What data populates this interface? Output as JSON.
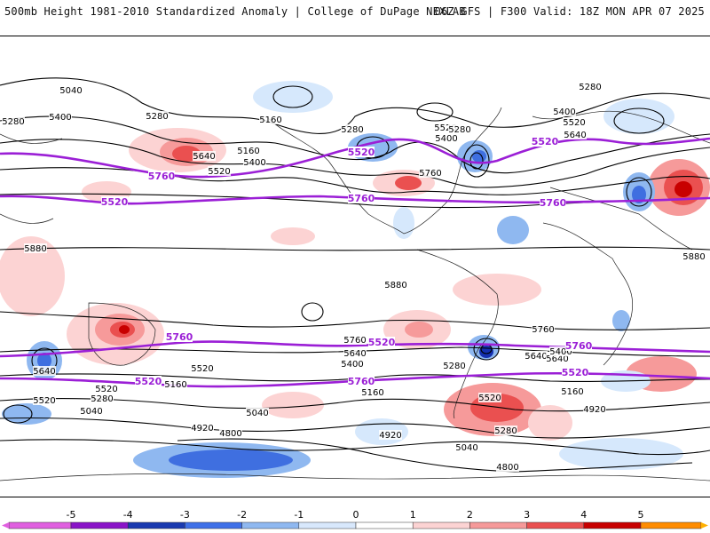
{
  "header": {
    "left_title": "500mb Height 1981-2010 Standardized Anomaly | College of DuPage NEXLAB",
    "right_title": "06Z GFS | F300 Valid: 18Z MON APR 07 2025"
  },
  "map": {
    "contour_color": "#000000",
    "highlight_color": "#9b1fd6",
    "contour_labels": [
      "5040",
      "5280",
      "5400",
      "5280",
      "5160",
      "5280",
      "5400",
      "5520",
      "5640",
      "5520",
      "5400",
      "5760",
      "5280",
      "5160",
      "5400",
      "5520",
      "5640",
      "5280",
      "5880",
      "5880",
      "5760",
      "5640",
      "5400",
      "5520",
      "5280",
      "5040",
      "5520",
      "5640",
      "5160",
      "5160",
      "5520",
      "5280",
      "5040",
      "4920",
      "4800",
      "5640",
      "5760",
      "5880",
      "5520",
      "5280",
      "4920",
      "5160",
      "5040",
      "4800",
      "4920",
      "5640",
      "5400"
    ],
    "highlight_labels": [
      "5520",
      "5760",
      "5520",
      "5760",
      "5520",
      "5760",
      "5760",
      "5520",
      "5760",
      "5520",
      "5760",
      "5520"
    ],
    "anomaly_colors": {
      "pos1": "#fcd3d3",
      "pos2": "#f69a9a",
      "pos3": "#ea5050",
      "pos4": "#c80000",
      "neg1": "#d6e8fc",
      "neg2": "#8fb8f0",
      "neg3": "#3f6fe0",
      "neg4": "#1530b0"
    }
  },
  "colorbar": {
    "ticks": [
      "-5",
      "-4",
      "-3",
      "-2",
      "-1",
      "0",
      "1",
      "2",
      "3",
      "4",
      "5"
    ],
    "colors": [
      "#e060e0",
      "#8a14c8",
      "#1a3ab0",
      "#3f70e8",
      "#8fb8f0",
      "#d8e8fc",
      "#ffffff",
      "#fcd3d3",
      "#f69a9a",
      "#ea5050",
      "#c80000",
      "#ff8c00",
      "#ffb000"
    ]
  }
}
